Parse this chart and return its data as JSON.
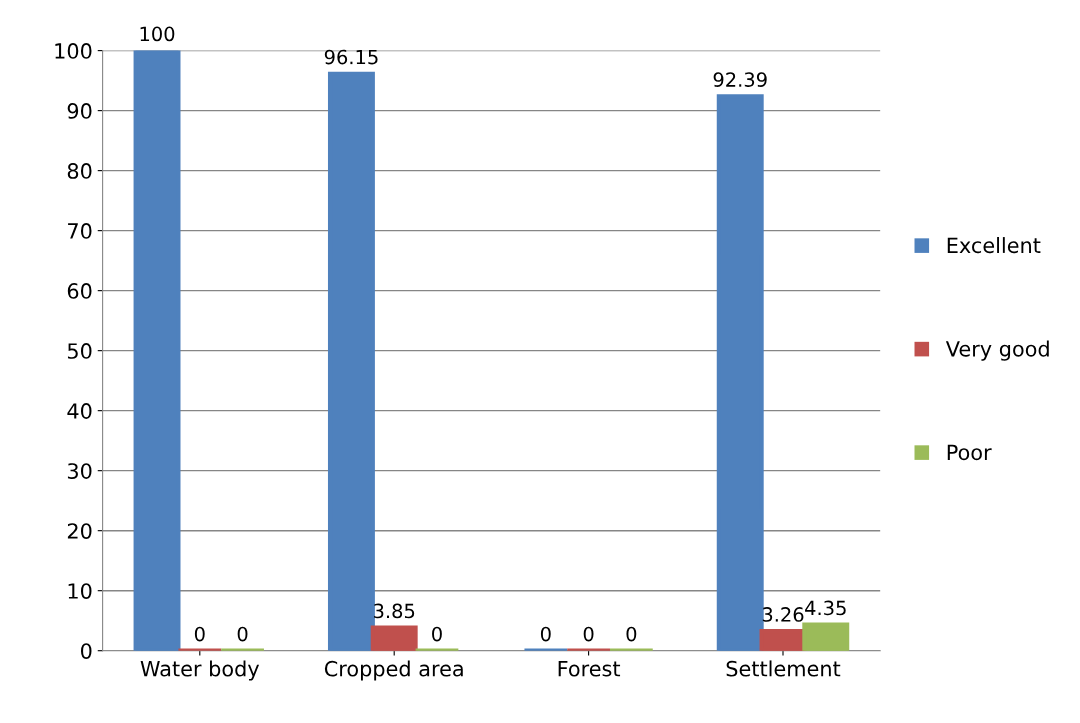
{
  "chart_data": {
    "type": "bar",
    "categories": [
      "Water body",
      "Cropped area",
      "Forest",
      "Settlement"
    ],
    "series": [
      {
        "name": "Excellent",
        "color": "#4f81bd",
        "values": [
          100,
          96.15,
          0,
          92.39
        ]
      },
      {
        "name": "Very good",
        "color": "#c0504d",
        "values": [
          0,
          3.85,
          0,
          3.26
        ]
      },
      {
        "name": "Poor",
        "color": "#9bbb59",
        "values": [
          0,
          0,
          0,
          4.35
        ]
      }
    ],
    "ylim": [
      0,
      100
    ],
    "yticks": [
      0,
      10,
      20,
      30,
      40,
      50,
      60,
      70,
      80,
      90,
      100
    ],
    "grid": "y",
    "legend": "right",
    "data_labels": true
  }
}
